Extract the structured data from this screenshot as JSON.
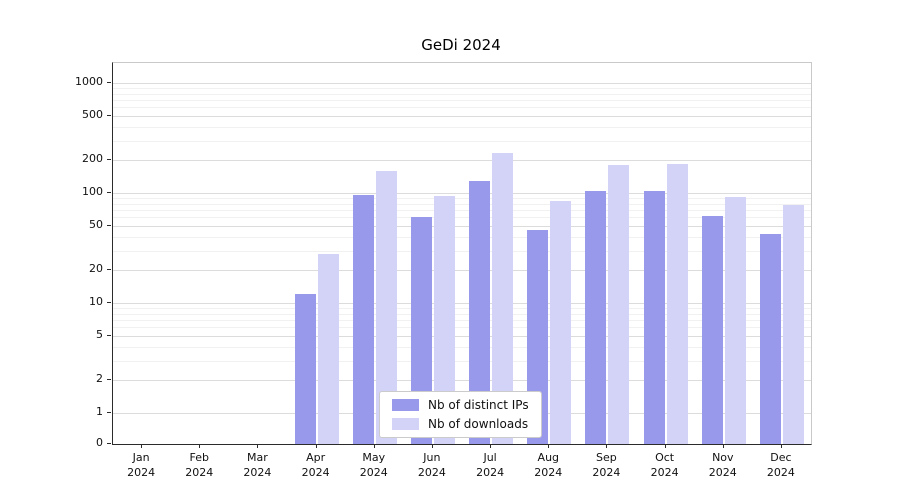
{
  "chart_data": {
    "type": "bar",
    "title": "GeDi 2024",
    "categories": [
      "Jan",
      "Feb",
      "Mar",
      "Apr",
      "May",
      "Jun",
      "Jul",
      "Aug",
      "Sep",
      "Oct",
      "Nov",
      "Dec"
    ],
    "year_label": "2024",
    "series": [
      {
        "name": "Nb of distinct IPs",
        "color": "#9999ec",
        "values": [
          0,
          0,
          0,
          12,
          97,
          60,
          130,
          46,
          105,
          105,
          62,
          42
        ]
      },
      {
        "name": "Nb of downloads",
        "color": "#d3d3f8",
        "values": [
          0,
          0,
          0,
          28,
          160,
          95,
          230,
          85,
          180,
          185,
          92,
          78
        ]
      }
    ],
    "yticks": [
      0,
      1,
      2,
      5,
      10,
      20,
      50,
      100,
      200,
      500,
      1000
    ],
    "yscale": "symlog",
    "ylim": [
      0,
      1500
    ],
    "grid": true,
    "legend_position": "lower center"
  }
}
